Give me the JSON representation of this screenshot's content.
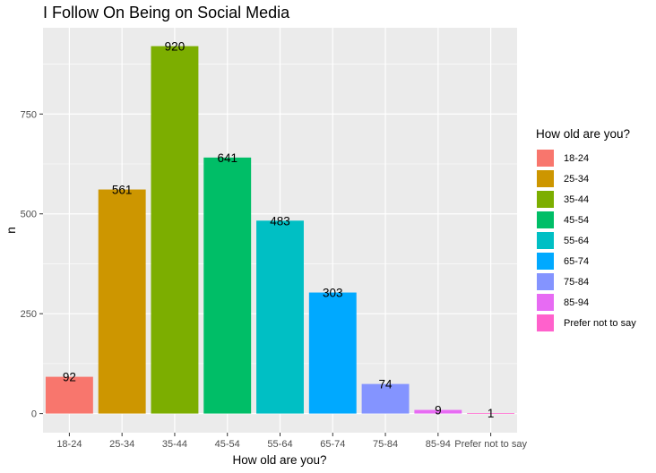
{
  "chart_data": {
    "type": "bar",
    "title": "I Follow On Being on Social Media",
    "xlabel": "How old are you?",
    "ylabel": "n",
    "categories": [
      "18-24",
      "25-34",
      "35-44",
      "45-54",
      "55-64",
      "65-74",
      "75-84",
      "85-94",
      "Prefer not to say"
    ],
    "values": [
      92,
      561,
      920,
      641,
      483,
      303,
      74,
      9,
      1
    ],
    "colors": [
      "#F8766D",
      "#CD9600",
      "#7CAE00",
      "#00BE67",
      "#00BFC4",
      "#00A9FF",
      "#8494FF",
      "#E76BF3",
      "#FF61CC"
    ],
    "yticks": [
      0,
      250,
      500,
      750
    ],
    "ylim": [
      -48,
      966
    ],
    "grid": true,
    "legend": {
      "title": "How old are you?",
      "placement": "right",
      "entries": [
        "18-24",
        "25-34",
        "35-44",
        "45-54",
        "55-64",
        "65-74",
        "75-84",
        "85-94",
        "Prefer not to say"
      ]
    }
  }
}
